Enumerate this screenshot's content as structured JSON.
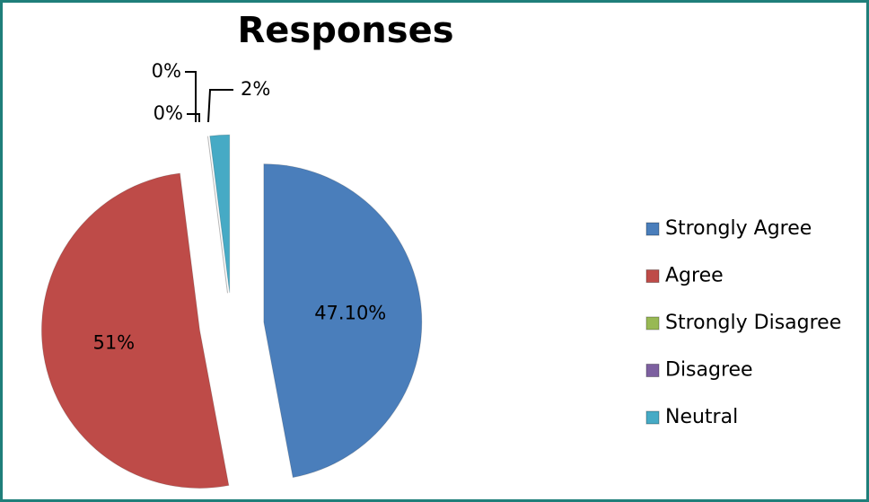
{
  "chart_data": {
    "type": "pie",
    "title": "Responses",
    "categories": [
      "Strongly Agree",
      "Agree",
      "Strongly Disagree",
      "Disagree",
      "Neutral"
    ],
    "values": [
      47.1,
      51,
      0,
      0,
      2
    ],
    "value_labels": [
      "47.10%",
      "51%",
      "0%",
      "0%",
      "2%"
    ],
    "colors": [
      "#4a7ebb",
      "#be4b48",
      "#98b954",
      "#7d60a0",
      "#46aac5"
    ],
    "legend": "right"
  }
}
